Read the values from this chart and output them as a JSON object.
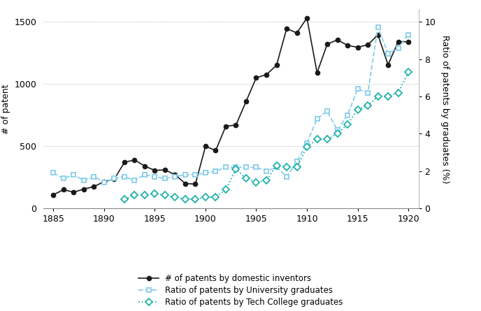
{
  "patents": {
    "years": [
      1885,
      1886,
      1887,
      1888,
      1889,
      1890,
      1891,
      1892,
      1893,
      1894,
      1895,
      1896,
      1897,
      1898,
      1899,
      1900,
      1901,
      1902,
      1903,
      1904,
      1905,
      1906,
      1907,
      1908,
      1909,
      1910,
      1911,
      1912,
      1913,
      1914,
      1915,
      1916,
      1917,
      1918,
      1919,
      1920
    ],
    "values": [
      110,
      150,
      130,
      155,
      175,
      215,
      235,
      370,
      390,
      340,
      305,
      310,
      270,
      200,
      195,
      500,
      465,
      660,
      670,
      860,
      1050,
      1075,
      1150,
      1445,
      1410,
      1530,
      1090,
      1320,
      1355,
      1310,
      1295,
      1315,
      1395,
      1155,
      1340,
      1340
    ]
  },
  "univ_ratio": {
    "years": [
      1885,
      1886,
      1887,
      1888,
      1889,
      1890,
      1891,
      1892,
      1893,
      1894,
      1895,
      1896,
      1897,
      1898,
      1899,
      1900,
      1901,
      1902,
      1903,
      1904,
      1905,
      1906,
      1907,
      1908,
      1909,
      1910,
      1911,
      1912,
      1913,
      1914,
      1915,
      1916,
      1917,
      1918,
      1919,
      1920
    ],
    "values": [
      1.9,
      1.6,
      1.8,
      1.5,
      1.7,
      1.4,
      1.6,
      1.7,
      1.5,
      1.8,
      1.7,
      1.6,
      1.7,
      1.8,
      1.8,
      1.9,
      2.0,
      2.2,
      2.2,
      2.2,
      2.2,
      2.0,
      2.2,
      1.7,
      2.5,
      3.5,
      4.8,
      5.2,
      4.2,
      5.0,
      6.4,
      6.2,
      9.7,
      8.3,
      8.6,
      9.3
    ]
  },
  "tech_ratio": {
    "years": [
      1892,
      1893,
      1894,
      1895,
      1896,
      1897,
      1898,
      1899,
      1900,
      1901,
      1902,
      1903,
      1904,
      1905,
      1906,
      1907,
      1908,
      1909,
      1910,
      1911,
      1912,
      1913,
      1914,
      1915,
      1916,
      1917,
      1918,
      1919,
      1920
    ],
    "values": [
      0.5,
      0.7,
      0.7,
      0.8,
      0.7,
      0.6,
      0.5,
      0.5,
      0.6,
      0.6,
      1.0,
      2.1,
      1.6,
      1.4,
      1.5,
      2.3,
      2.2,
      2.2,
      3.3,
      3.7,
      3.7,
      4.0,
      4.5,
      5.3,
      5.5,
      6.0,
      6.0,
      6.2,
      7.3
    ]
  },
  "patent_color": "#1a1a1a",
  "univ_color": "#87CEEB",
  "tech_color": "#20B2AA",
  "ylim_left": [
    0,
    1600
  ],
  "ylim_right": [
    0,
    10.667
  ],
  "yticks_left": [
    0,
    500,
    1000,
    1500
  ],
  "yticks_right": [
    0,
    2,
    4,
    6,
    8,
    10
  ],
  "xlim": [
    1884,
    1921
  ],
  "xticks": [
    1885,
    1890,
    1895,
    1900,
    1905,
    1910,
    1915,
    1920
  ],
  "ylabel_left": "# of patent",
  "ylabel_right": "Ratio of patents by graduates (%)",
  "legend_labels": [
    "# of patents by domestic inventors",
    "Ratio of patents by University graduates",
    "Ratio of patents by Tech College graduates"
  ],
  "background_color": "#ffffff"
}
